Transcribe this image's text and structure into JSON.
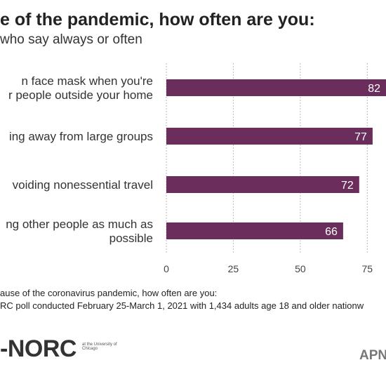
{
  "header": {
    "title": "e of the pandemic, how often are you:",
    "subtitle": "who say always or often"
  },
  "chart_data": {
    "type": "bar",
    "orientation": "horizontal",
    "categories": [
      [
        "n face mask when you're",
        "r people outside your home"
      ],
      [
        "ing away from large groups"
      ],
      [
        "voiding nonessential travel"
      ],
      [
        "ng other people as much as",
        "possible"
      ]
    ],
    "values": [
      82,
      77,
      72,
      66
    ],
    "xlim": [
      0,
      82
    ],
    "ticks": [
      0,
      25,
      50,
      75
    ],
    "tick_labels": [
      "0",
      "25",
      "50",
      "75"
    ],
    "grid": true,
    "bar_color": "#6b2d5c"
  },
  "notes": {
    "line1": "ause of the coronavirus pandemic, how often are you:",
    "line2": "RC poll conducted February 25-March 1, 2021 with 1,434 adults age 18 and older nationw"
  },
  "logos": {
    "norc": "-NORC",
    "norc_sub": "at the University of Chicago",
    "apn": "APN"
  }
}
